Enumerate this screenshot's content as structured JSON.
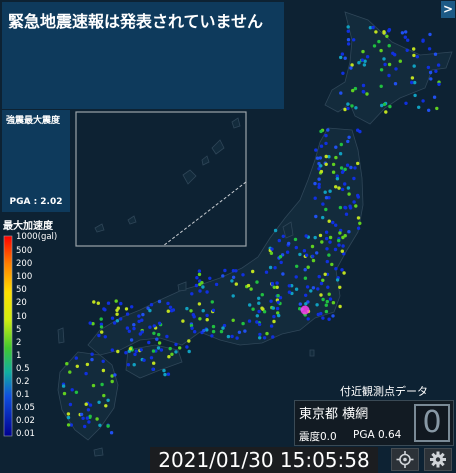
{
  "eew_banner": {
    "text": "緊急地震速報は発表されていません"
  },
  "expand_button": {
    "label": ">"
  },
  "max_intensity_panel": {
    "title": "強震最大震度",
    "pga": "PGA : 2.02"
  },
  "legend": {
    "title": "最大加速度",
    "unit_label": "1000(gal)",
    "ticks": [
      "500",
      "200",
      "100",
      "50",
      "20",
      "10",
      "5",
      "2",
      "1",
      "0.5",
      "0.2",
      "0.1",
      "0.05",
      "0.02",
      "0.01"
    ],
    "colors": [
      "#ff0000",
      "#ff4000",
      "#ff8000",
      "#ffb000",
      "#ffe000",
      "#e8f000",
      "#b0e000",
      "#60d020",
      "#20c040",
      "#10b0a0",
      "#2080e0",
      "#1040e0",
      "#0018d0",
      "#0000b0",
      "#000090"
    ]
  },
  "nearby": {
    "label": "付近観測点データ",
    "station": "東京都 横網",
    "intensity": "震度0.0",
    "pga": "PGA 0.64",
    "intensity_value": "0"
  },
  "timestamp": "2021/01/30 15:05:58",
  "icons": {
    "locate": "locate-icon",
    "settings": "gear-icon"
  }
}
